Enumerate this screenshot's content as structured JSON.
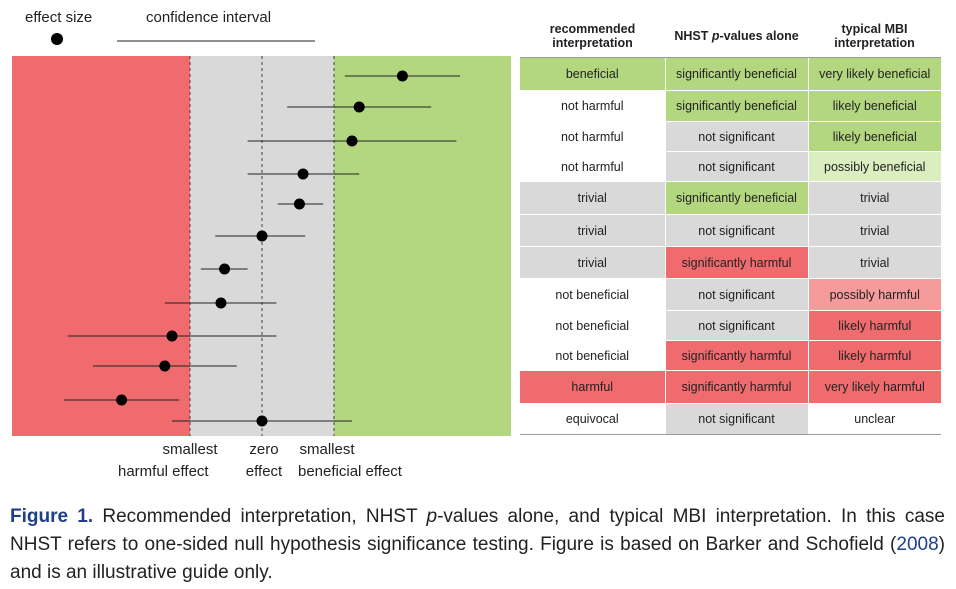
{
  "legend": {
    "effect_size": "effect size",
    "confidence_interval": "confidence interval"
  },
  "axis_labels": {
    "smallest_harmful_line1": "smallest",
    "smallest_harmful_line2": "harmful effect",
    "zero_line1": "zero",
    "zero_line2": "effect",
    "smallest_beneficial_line1": "smallest",
    "smallest_beneficial_line2": "beneficial effect"
  },
  "colors": {
    "harmful": "#f06b6e",
    "trivial": "#d9d9d9",
    "beneficial": "#b3d77f",
    "beneficial_light": "#dbeec0",
    "harmful_light": "#f59b9c",
    "white": "#ffffff"
  },
  "chart_data": {
    "type": "scatter",
    "description_note": "",
    "x_scale": {
      "harmful_threshold": -1,
      "zero": 0,
      "beneficial_threshold": 1
    },
    "points": [
      {
        "estimate": 1.95,
        "lower": 1.15,
        "upper": 2.75
      },
      {
        "estimate": 1.35,
        "lower": 0.35,
        "upper": 2.35
      },
      {
        "estimate": 1.25,
        "lower": -0.2,
        "upper": 2.7
      },
      {
        "estimate": 0.57,
        "lower": -0.2,
        "upper": 1.35
      },
      {
        "estimate": 0.52,
        "lower": 0.22,
        "upper": 0.85
      },
      {
        "estimate": 0.0,
        "lower": -0.65,
        "upper": 0.6
      },
      {
        "estimate": -0.52,
        "lower": -0.85,
        "upper": -0.2
      },
      {
        "estimate": -0.57,
        "lower": -1.35,
        "upper": 0.2
      },
      {
        "estimate": -1.25,
        "lower": -2.7,
        "upper": 0.2
      },
      {
        "estimate": -1.35,
        "lower": -2.35,
        "upper": -0.35
      },
      {
        "estimate": -1.95,
        "lower": -2.75,
        "upper": -1.15
      },
      {
        "estimate": 0.0,
        "lower": -1.25,
        "upper": 1.25
      }
    ]
  },
  "table": {
    "headers": [
      "recommended interpretation",
      "NHST p-values alone",
      "typical MBI interpretation"
    ],
    "header_parts": {
      "nhst_prefix": "NHST ",
      "nhst_italic": "p",
      "nhst_suffix": "-values alone"
    },
    "rows": [
      {
        "rec": "beneficial",
        "rec_color": "beneficial",
        "nhst": "significantly beneficial",
        "nhst_color": "beneficial",
        "mbi": "very likely beneficial",
        "mbi_color": "beneficial"
      },
      {
        "rec": "not harmful",
        "rec_color": "white",
        "nhst": "significantly beneficial",
        "nhst_color": "beneficial",
        "mbi": "likely beneficial",
        "mbi_color": "beneficial"
      },
      {
        "rec": "not harmful",
        "rec_color": "white",
        "nhst": "not significant",
        "nhst_color": "trivial",
        "mbi": "likely beneficial",
        "mbi_color": "beneficial"
      },
      {
        "rec": "not harmful",
        "rec_color": "white",
        "nhst": "not significant",
        "nhst_color": "trivial",
        "mbi": "possibly beneficial",
        "mbi_color": "beneficial_light"
      },
      {
        "rec": "trivial",
        "rec_color": "trivial",
        "nhst": "significantly beneficial",
        "nhst_color": "beneficial",
        "mbi": "trivial",
        "mbi_color": "trivial"
      },
      {
        "rec": "trivial",
        "rec_color": "trivial",
        "nhst": "not significant",
        "nhst_color": "trivial",
        "mbi": "trivial",
        "mbi_color": "trivial"
      },
      {
        "rec": "trivial",
        "rec_color": "trivial",
        "nhst": "significantly harmful",
        "nhst_color": "harmful",
        "mbi": "trivial",
        "mbi_color": "trivial"
      },
      {
        "rec": "not beneficial",
        "rec_color": "white",
        "nhst": "not significant",
        "nhst_color": "trivial",
        "mbi": "possibly harmful",
        "mbi_color": "harmful_light"
      },
      {
        "rec": "not beneficial",
        "rec_color": "white",
        "nhst": "not significant",
        "nhst_color": "trivial",
        "mbi": "likely harmful",
        "mbi_color": "harmful"
      },
      {
        "rec": "not beneficial",
        "rec_color": "white",
        "nhst": "significantly harmful",
        "nhst_color": "harmful",
        "mbi": "likely harmful",
        "mbi_color": "harmful"
      },
      {
        "rec": "harmful",
        "rec_color": "harmful",
        "nhst": "significantly harmful",
        "nhst_color": "harmful",
        "mbi": "very likely harmful",
        "mbi_color": "harmful"
      },
      {
        "rec": "equivocal",
        "rec_color": "white",
        "nhst": "not significant",
        "nhst_color": "trivial",
        "mbi": "unclear",
        "mbi_color": "white"
      }
    ]
  },
  "caption": {
    "label": "Figure 1.",
    "text1": " Recommended interpretation, NHST ",
    "italic_p": "p",
    "text2": "-values alone, and typical MBI interpretation. In this case NHST refers to one-sided null hypothesis significance testing. Figure is based on Barker and Schofield (",
    "ref_year": "2008",
    "text3": ") and is an illustrative guide only."
  }
}
